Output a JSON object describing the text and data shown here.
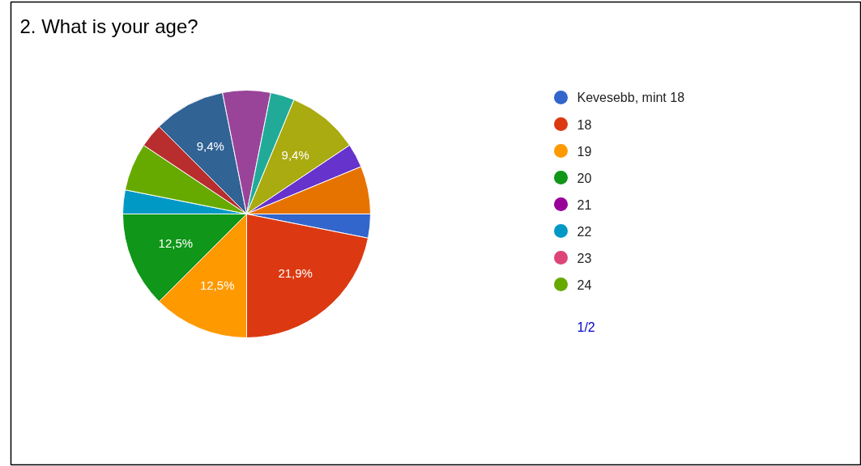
{
  "chart_data": {
    "type": "pie",
    "title": "2. What is your age?",
    "categories": [
      "Kevesebb, mint 18",
      "18",
      "19",
      "20",
      "21",
      "22",
      "23",
      "24",
      null,
      null,
      null,
      null,
      null,
      null,
      null
    ],
    "values": [
      3.125,
      21.875,
      12.5,
      12.5,
      0,
      3.125,
      0,
      6.25,
      3.125,
      9.375,
      6.25,
      3.125,
      9.375,
      3.125,
      6.25
    ],
    "colors": [
      "#3366cc",
      "#dc3912",
      "#ff9900",
      "#109618",
      "#990099",
      "#0099c6",
      "#dd4477",
      "#66aa00",
      "#b82e2e",
      "#316395",
      "#994499",
      "#22aa99",
      "#aaaa11",
      "#6633cc",
      "#e67300"
    ],
    "value_labels": [
      null,
      "21,9%",
      "12,5%",
      "12,5%",
      null,
      null,
      null,
      null,
      null,
      "9,4%",
      null,
      null,
      "9,4%",
      null,
      null
    ],
    "legend": "right",
    "annotations": [
      "1/2"
    ]
  }
}
